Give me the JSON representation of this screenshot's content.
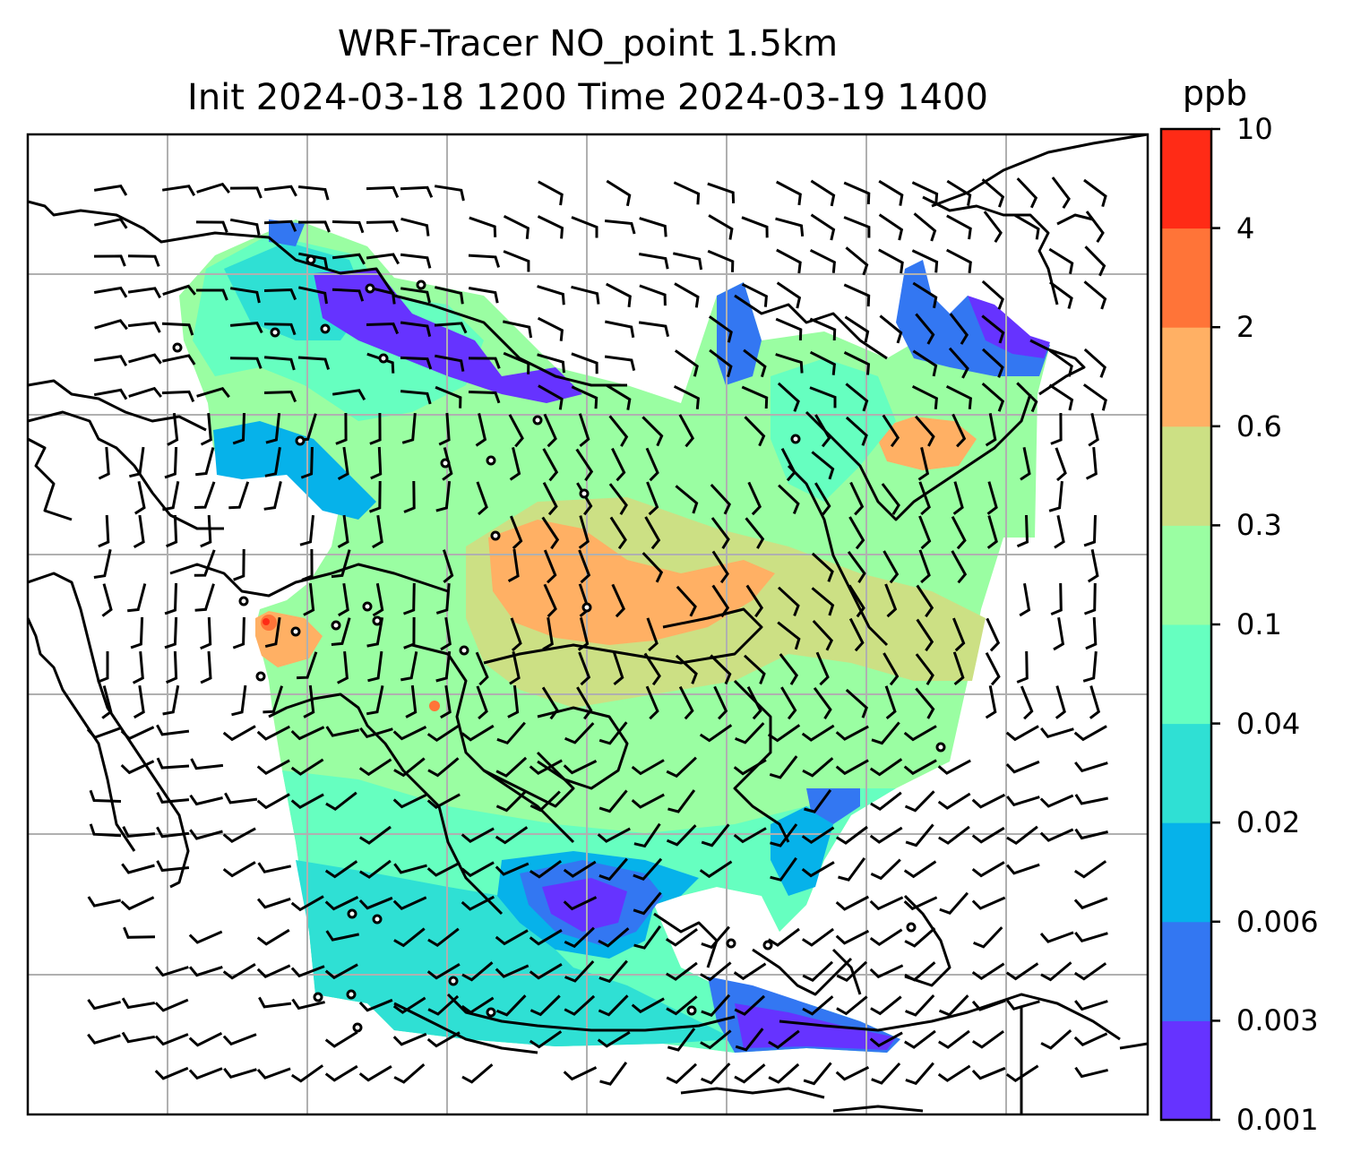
{
  "title": {
    "line1": "WRF-Tracer NO_point 1.5km",
    "line2": "Init 2024-03-18 1200 Time 2024-03-19 1400"
  },
  "colorbar": {
    "unit": "ppb",
    "levels": [
      "0.001",
      "0.003",
      "0.006",
      "0.02",
      "0.04",
      "0.1",
      "0.3",
      "0.6",
      "2",
      "4",
      "10"
    ],
    "colors": [
      "#6633ff",
      "#3377f2",
      "#06b2ea",
      "#2fe0d4",
      "#66ffc0",
      "#9afea2",
      "#cce084",
      "#ffb064",
      "#ff7438",
      "#ff2b16"
    ]
  },
  "map": {
    "gridlines": true,
    "background_color": "#ffffff",
    "coastline_color": "#000000",
    "grid_color": "#b0b0b0"
  }
}
